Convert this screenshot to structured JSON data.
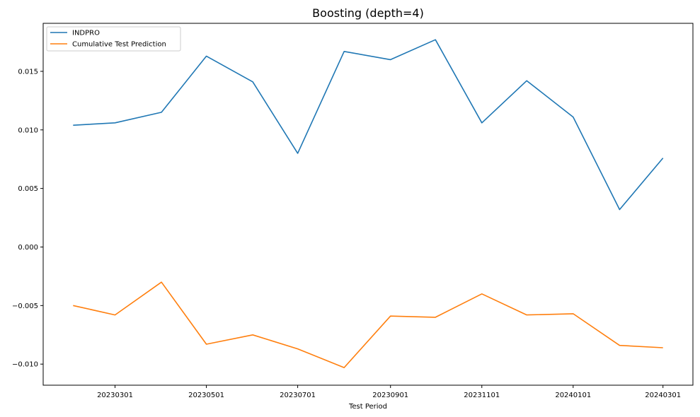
{
  "chart_data": {
    "type": "line",
    "title": "Boosting (depth=4)",
    "xlabel": "Test Period",
    "ylabel": "",
    "x": [
      "20230201",
      "20230301",
      "20230401",
      "20230501",
      "20230601",
      "20230701",
      "20230801",
      "20230901",
      "20231001",
      "20231101",
      "20231201",
      "20240101",
      "20240201",
      "20240301"
    ],
    "x_tick_labels": [
      "20230301",
      "20230501",
      "20230701",
      "20230901",
      "20231101",
      "20240101",
      "20240301"
    ],
    "y_tick_labels": [
      "−0.010",
      "−0.005",
      "0.000",
      "0.005",
      "0.010",
      "0.015"
    ],
    "y_ticks": [
      -0.01,
      -0.005,
      0.0,
      0.005,
      0.01,
      0.015
    ],
    "ylim": [
      -0.0118,
      0.0191
    ],
    "xlim": [
      "20230112",
      "20240321"
    ],
    "grid": false,
    "legend_position": "top-left",
    "series": [
      {
        "name": "INDPRO",
        "color": "#1f77b4",
        "values": [
          0.0104,
          0.0106,
          0.0115,
          0.0163,
          0.0141,
          0.008,
          0.0167,
          0.016,
          0.0177,
          0.0106,
          0.0142,
          0.0111,
          0.0032,
          0.0076
        ]
      },
      {
        "name": "Cumulative Test Prediction",
        "color": "#ff7f0e",
        "values": [
          -0.005,
          -0.0058,
          -0.003,
          -0.0083,
          -0.0075,
          -0.0087,
          -0.0103,
          -0.0059,
          -0.006,
          -0.004,
          -0.0058,
          -0.0057,
          -0.0084,
          -0.0086
        ]
      }
    ]
  }
}
